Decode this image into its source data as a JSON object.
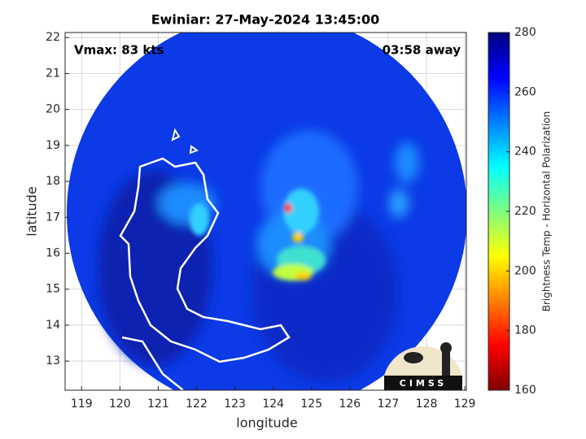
{
  "chart_data": {
    "type": "image-map",
    "title": "Ewiniar: 27-May-2024 13:45:00",
    "annotations": [
      "Vmax: 83 kts",
      "03:58 away"
    ],
    "x_label": "longitude",
    "y_label": "latitude",
    "xlim": [
      118.57,
      129.04
    ],
    "xticks": [
      119,
      120,
      121,
      122,
      123,
      124,
      125,
      126,
      127,
      128,
      129
    ],
    "ylim": [
      12.19,
      22.14
    ],
    "yticks": [
      13,
      14,
      15,
      16,
      17,
      18,
      19,
      20,
      21,
      22
    ],
    "grid": true,
    "colorbar": {
      "label": "Brightness Temp - Horizontal Polarization",
      "lim": [
        160,
        280
      ],
      "ticks": [
        160,
        180,
        200,
        220,
        240,
        260,
        280
      ],
      "colormap": [
        "#7f0000",
        "#ff0000",
        "#ff7f00",
        "#ffff00",
        "#7fff7f",
        "#00ffff",
        "#007fff",
        "#0000ff",
        "#00007f"
      ]
    }
  },
  "logo": {
    "text": "CIMSS"
  }
}
